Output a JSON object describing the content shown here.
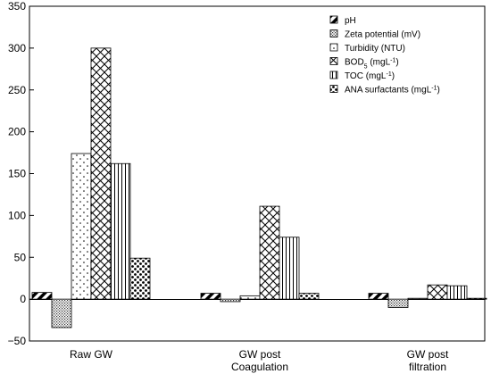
{
  "chart_data": {
    "type": "bar",
    "categories": [
      [
        "Raw GW"
      ],
      [
        "GW post",
        "Coagulation"
      ],
      [
        "GW post",
        "filtration"
      ]
    ],
    "series": [
      {
        "name": "pH",
        "name_parts": [
          [
            "pH",
            ""
          ]
        ],
        "pattern": "hatch-diag",
        "values": [
          8,
          7,
          7
        ]
      },
      {
        "name": "Zeta potential (mV)",
        "name_parts": [
          [
            "Zeta potential (mV)",
            ""
          ]
        ],
        "pattern": "fine-dots",
        "values": [
          -34,
          -3,
          -10
        ]
      },
      {
        "name": "Turbidity (NTU)",
        "name_parts": [
          [
            "Turbidity (NTU)",
            ""
          ]
        ],
        "pattern": "sparse-dots",
        "values": [
          174,
          4,
          1
        ]
      },
      {
        "name": "BOD5 (mgL-1)",
        "name_parts": [
          [
            "BOD",
            ""
          ],
          [
            "5",
            "sub"
          ],
          [
            " (mgL",
            ""
          ],
          [
            "-1",
            "sup"
          ],
          [
            ")",
            ""
          ]
        ],
        "pattern": "crosshatch",
        "values": [
          300,
          111,
          17
        ]
      },
      {
        "name": "TOC (mgL-1)",
        "name_parts": [
          [
            "TOC (mgL",
            ""
          ],
          [
            "-1",
            "sup"
          ],
          [
            ")",
            ""
          ]
        ],
        "pattern": "vlines",
        "values": [
          162,
          74,
          16
        ]
      },
      {
        "name": "ANA surfactants (mgL-1)",
        "name_parts": [
          [
            "ANA surfactants (mgL",
            ""
          ],
          [
            "-1",
            "sup"
          ],
          [
            ")",
            ""
          ]
        ],
        "pattern": "big-dots",
        "values": [
          49,
          7,
          1
        ]
      }
    ],
    "yticks": [
      -50,
      0,
      50,
      100,
      150,
      200,
      250,
      300,
      350
    ],
    "ylim": [
      -50,
      350
    ],
    "legend_position": "top-right",
    "grid": false
  }
}
